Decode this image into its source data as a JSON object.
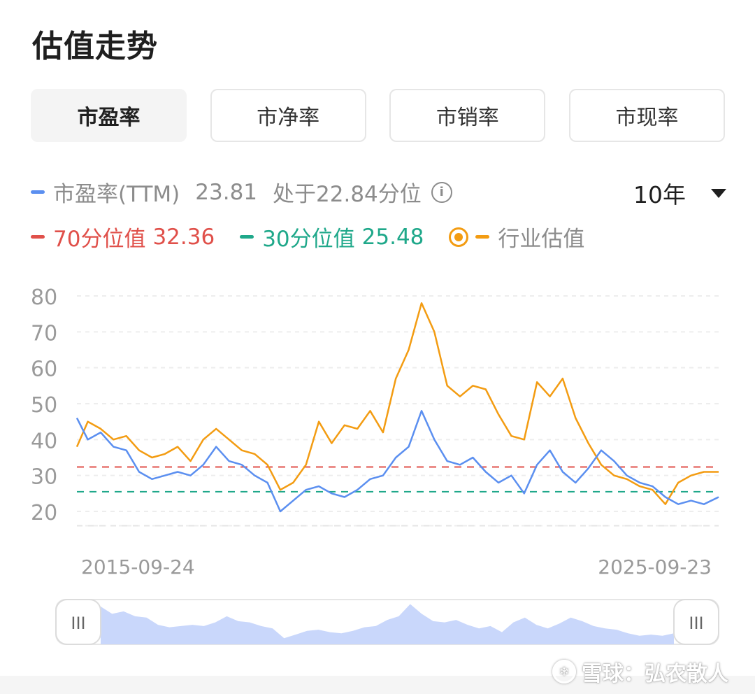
{
  "header": {
    "title": "估值走势"
  },
  "tabs": [
    {
      "label": "市盈率",
      "active": true
    },
    {
      "label": "市净率",
      "active": false
    },
    {
      "label": "市销率",
      "active": false
    },
    {
      "label": "市现率",
      "active": false
    }
  ],
  "legend": {
    "pe_label": "市盈率(TTM)",
    "pe_value": "23.81",
    "percentile_text": "处于22.84分位",
    "info_icon": "info-icon",
    "p70_label": "70分位值",
    "p70_value": "32.36",
    "p30_label": "30分位值",
    "p30_value": "25.48",
    "industry_label": "行业估值",
    "industry_icon": "radio-selected-icon"
  },
  "period": {
    "label": "10年",
    "icon": "caret-down-icon"
  },
  "colors": {
    "pe": "#5b8ff0",
    "industry": "#f39c12",
    "p70": "#e0504a",
    "p30": "#1fa88a",
    "navigator": "#c9d7fb"
  },
  "watermark": {
    "text": "雪球：弘农散人"
  },
  "chart_data": {
    "type": "line",
    "x_start": "2015-09-24",
    "x_end": "2025-09-23",
    "x_tick_labels": [
      "2015-09-24",
      "2025-09-23"
    ],
    "y_ticks": [
      "80",
      "70",
      "60",
      "50",
      "40",
      "30",
      "20"
    ],
    "ylim": [
      16,
      80
    ],
    "grid": true,
    "reference_lines": [
      {
        "name": "70分位值",
        "value": 32.36,
        "style": "dashed"
      },
      {
        "name": "30分位值",
        "value": 25.48,
        "style": "dashed"
      }
    ],
    "x": [
      2015.73,
      2015.9,
      2016.1,
      2016.3,
      2016.5,
      2016.7,
      2016.9,
      2017.1,
      2017.3,
      2017.5,
      2017.7,
      2017.9,
      2018.1,
      2018.3,
      2018.5,
      2018.7,
      2018.9,
      2019.1,
      2019.3,
      2019.5,
      2019.7,
      2019.9,
      2020.1,
      2020.3,
      2020.5,
      2020.7,
      2020.9,
      2021.1,
      2021.3,
      2021.5,
      2021.7,
      2021.9,
      2022.1,
      2022.3,
      2022.5,
      2022.7,
      2022.9,
      2023.1,
      2023.3,
      2023.5,
      2023.7,
      2023.9,
      2024.1,
      2024.3,
      2024.5,
      2024.7,
      2024.9,
      2025.1,
      2025.3,
      2025.5,
      2025.73
    ],
    "series": [
      {
        "name": "市盈率(TTM)",
        "values": [
          46,
          40,
          42,
          38,
          37,
          31,
          29,
          30,
          31,
          30,
          33,
          38,
          34,
          33,
          30,
          28,
          20,
          23,
          26,
          27,
          25,
          24,
          26,
          29,
          30,
          35,
          38,
          48,
          40,
          34,
          33,
          35,
          31,
          28,
          30,
          25,
          33,
          37,
          31,
          28,
          32,
          37,
          34,
          30,
          28,
          27,
          24,
          22,
          23,
          22,
          24
        ]
      },
      {
        "name": "行业估值",
        "values": [
          38,
          45,
          43,
          40,
          41,
          37,
          35,
          36,
          38,
          34,
          40,
          43,
          40,
          37,
          36,
          33,
          26,
          28,
          33,
          45,
          39,
          44,
          43,
          48,
          42,
          57,
          65,
          78,
          70,
          55,
          52,
          55,
          54,
          47,
          41,
          40,
          56,
          52,
          57,
          46,
          39,
          33,
          30,
          29,
          27,
          26,
          22,
          28,
          30,
          31,
          31
        ]
      }
    ]
  }
}
